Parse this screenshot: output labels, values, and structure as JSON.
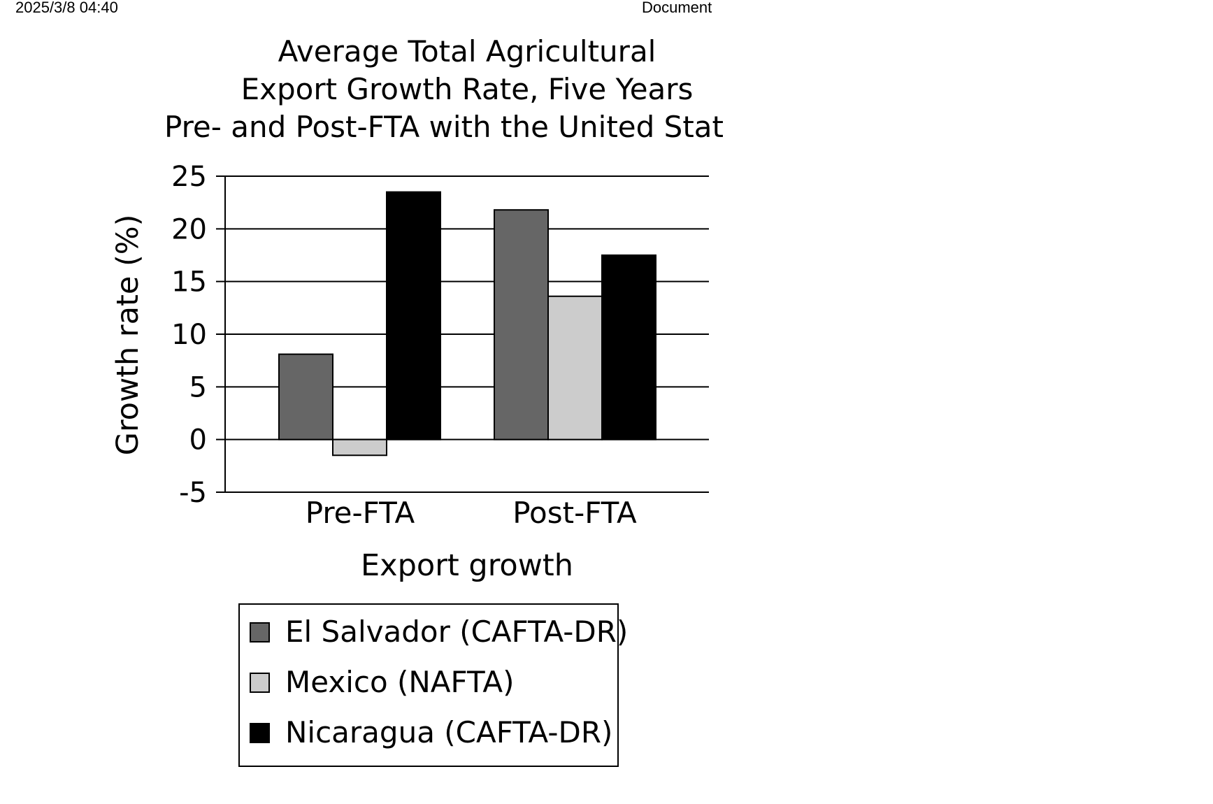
{
  "header": {
    "timestamp": "2025/3/8 04:40",
    "document_title": "Document"
  },
  "chart_data": {
    "type": "bar",
    "title_lines": [
      "Average Total Agricultural",
      "Export Growth Rate, Five Years",
      "Pre- and Post-FTA with the United Stat"
    ],
    "xlabel": "Export growth",
    "ylabel": "Growth rate (%)",
    "categories": [
      "Pre-FTA",
      "Post-FTA"
    ],
    "yticks": [
      "25",
      "20",
      "15",
      "10",
      "5",
      "0",
      "-5"
    ],
    "ytick_values": [
      25,
      20,
      15,
      10,
      5,
      0,
      -5
    ],
    "ylim": [
      -5,
      25
    ],
    "grid": true,
    "legend_position": "bottom",
    "series": [
      {
        "name": "El Salvador (CAFTA-DR)",
        "color": "#666666",
        "values": [
          8.1,
          21.8
        ]
      },
      {
        "name": "Mexico (NAFTA)",
        "color": "#cccccc",
        "values": [
          -1.5,
          13.6
        ]
      },
      {
        "name": "Nicaragua (CAFTA-DR)",
        "color": "#000000",
        "values": [
          23.5,
          17.5
        ]
      }
    ]
  }
}
